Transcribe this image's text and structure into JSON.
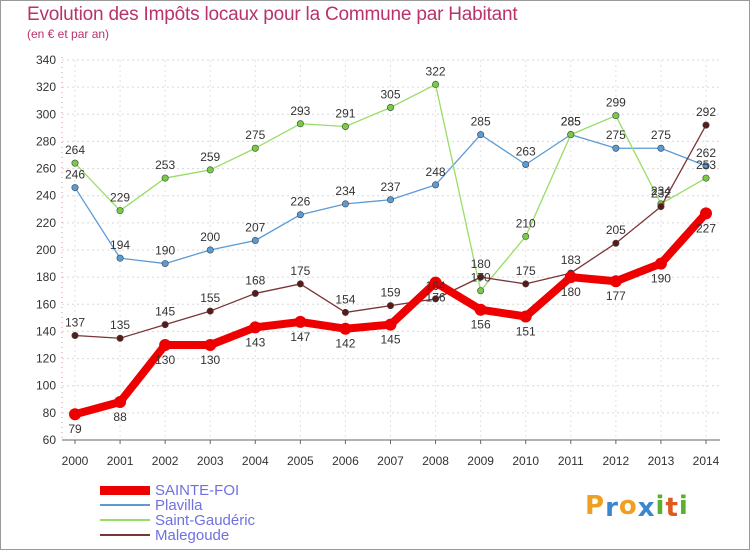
{
  "title": "Evolution des Impôts locaux pour la Commune par Habitant",
  "subtitle": "(en € et par an)",
  "logo": {
    "letters": [
      "P",
      "r",
      "o",
      "x",
      "i",
      "t",
      "i"
    ],
    "colors": [
      "#f0a020",
      "#3a86d0",
      "#f0a020",
      "#3a86d0",
      "#5bb030",
      "#e05a20",
      "#5bb030"
    ]
  },
  "chart_data": {
    "type": "line",
    "title": "Evolution des Impôts locaux pour la Commune par Habitant",
    "subtitle": "(en € et par an)",
    "x": [
      "2000",
      "2001",
      "2002",
      "2003",
      "2004",
      "2005",
      "2006",
      "2007",
      "2008",
      "2009",
      "2010",
      "2011",
      "2012",
      "2013",
      "2014"
    ],
    "ylim": [
      60,
      340
    ],
    "yticks": [
      60,
      80,
      100,
      120,
      140,
      160,
      180,
      200,
      220,
      240,
      260,
      280,
      300,
      320,
      340
    ],
    "grid": true,
    "legend_position": "bottom-left",
    "series": [
      {
        "name": "SAINTE-FOI",
        "color": "#ee0000",
        "marker": "#ee0000",
        "width": 8,
        "labels_below": true,
        "values": [
          79,
          88,
          130,
          130,
          143,
          147,
          142,
          145,
          176,
          156,
          151,
          180,
          177,
          190,
          227
        ]
      },
      {
        "name": "Plavilla",
        "color": "#5b9bd5",
        "marker": "#5b9bd5",
        "width": 1.3,
        "labels_below": false,
        "values": [
          246,
          194,
          190,
          200,
          207,
          226,
          234,
          237,
          248,
          285,
          263,
          285,
          275,
          275,
          262
        ]
      },
      {
        "name": "Saint-Gaudéric",
        "color": "#99dd66",
        "marker": "#77cc44",
        "width": 1.3,
        "labels_below": false,
        "values": [
          264,
          229,
          253,
          259,
          275,
          293,
          291,
          305,
          322,
          170,
          210,
          285,
          299,
          234,
          253
        ]
      },
      {
        "name": "Malegoude",
        "color": "#7a3535",
        "marker": "#5a1a1a",
        "width": 1.3,
        "labels_below": false,
        "values": [
          137,
          135,
          145,
          155,
          168,
          175,
          154,
          159,
          164,
          180,
          175,
          183,
          205,
          232,
          292
        ]
      }
    ]
  }
}
